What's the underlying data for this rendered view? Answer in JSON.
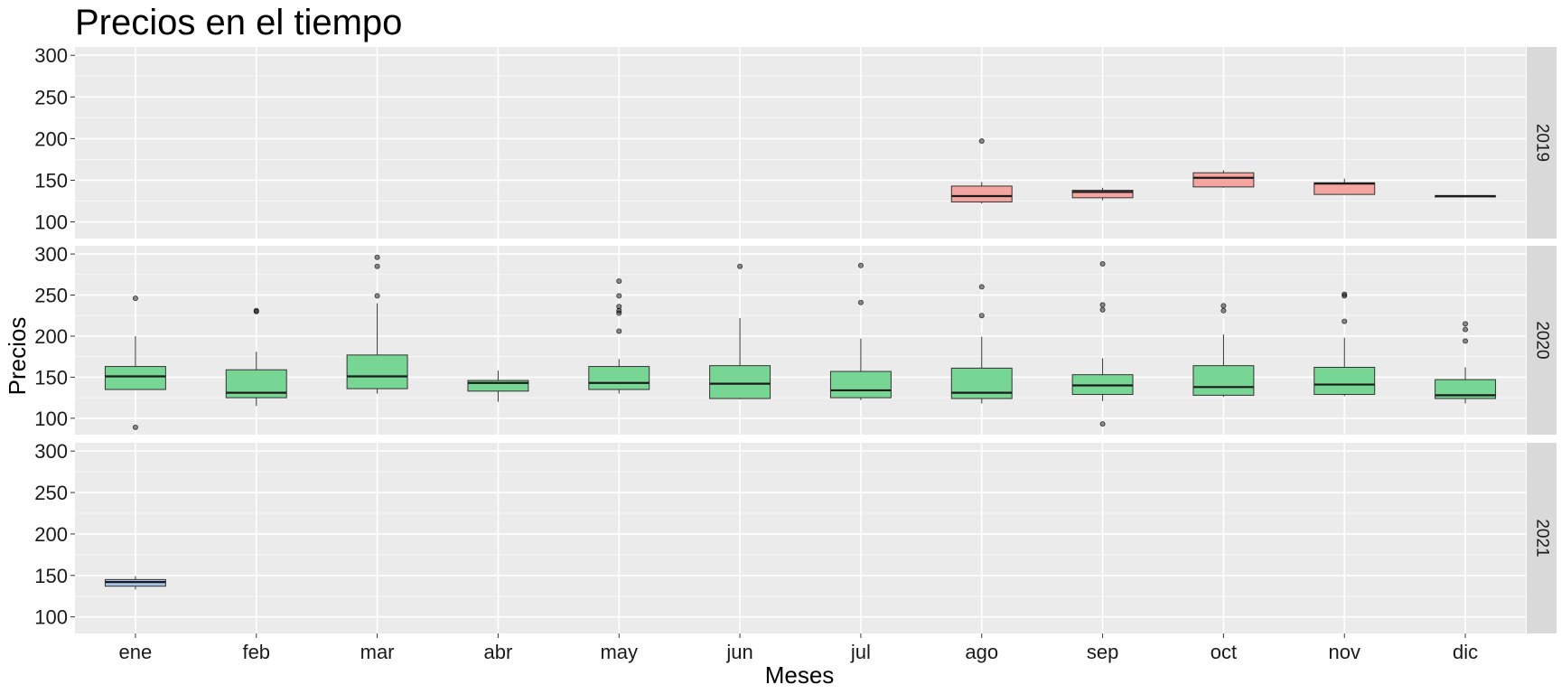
{
  "chart_data": {
    "type": "boxplot",
    "title": "Precios en el tiempo",
    "xlabel": "Meses",
    "ylabel": "Precios",
    "categories": [
      "ene",
      "feb",
      "mar",
      "abr",
      "may",
      "jun",
      "jul",
      "ago",
      "sep",
      "oct",
      "nov",
      "dic"
    ],
    "ylim": [
      80,
      310
    ],
    "yticks": [
      100,
      150,
      200,
      250,
      300
    ],
    "grid": true,
    "facets": [
      {
        "label": "2019",
        "color": "#F4A5A0",
        "boxes": [
          {
            "month": "ago",
            "min": 122,
            "q1": 124,
            "median": 131,
            "q3": 143,
            "max": 148,
            "outliers": [
              197
            ]
          },
          {
            "month": "sep",
            "min": 126,
            "q1": 129,
            "median": 136,
            "q3": 138,
            "max": 141,
            "outliers": []
          },
          {
            "month": "oct",
            "min": 141,
            "q1": 142,
            "median": 153,
            "q3": 159,
            "max": 162,
            "outliers": []
          },
          {
            "month": "nov",
            "min": 133,
            "q1": 133,
            "median": 146,
            "q3": 147,
            "max": 152,
            "outliers": []
          },
          {
            "month": "dic",
            "min": 130,
            "q1": 130,
            "median": 131,
            "q3": 131,
            "max": 131,
            "outliers": []
          }
        ]
      },
      {
        "label": "2020",
        "color": "#78D694",
        "boxes": [
          {
            "month": "ene",
            "min": 135,
            "q1": 135,
            "median": 151,
            "q3": 163,
            "max": 200,
            "outliers": [
              89,
              246
            ]
          },
          {
            "month": "feb",
            "min": 115,
            "q1": 125,
            "median": 131,
            "q3": 159,
            "max": 181,
            "outliers": [
              230,
              231
            ]
          },
          {
            "month": "mar",
            "min": 130,
            "q1": 136,
            "median": 151,
            "q3": 177,
            "max": 240,
            "outliers": [
              249,
              285,
              296
            ]
          },
          {
            "month": "abr",
            "min": 120,
            "q1": 133,
            "median": 143,
            "q3": 146,
            "max": 158,
            "outliers": []
          },
          {
            "month": "may",
            "min": 130,
            "q1": 135,
            "median": 143,
            "q3": 163,
            "max": 172,
            "outliers": [
              206,
              228,
              231,
              236,
              249,
              267
            ]
          },
          {
            "month": "jun",
            "min": 123,
            "q1": 124,
            "median": 142,
            "q3": 164,
            "max": 222,
            "outliers": [
              285
            ]
          },
          {
            "month": "jul",
            "min": 122,
            "q1": 125,
            "median": 134,
            "q3": 157,
            "max": 197,
            "outliers": [
              241,
              286
            ]
          },
          {
            "month": "ago",
            "min": 118,
            "q1": 124,
            "median": 131,
            "q3": 161,
            "max": 199,
            "outliers": [
              225,
              260
            ]
          },
          {
            "month": "sep",
            "min": 121,
            "q1": 129,
            "median": 140,
            "q3": 153,
            "max": 173,
            "outliers": [
              93,
              232,
              238,
              288
            ]
          },
          {
            "month": "oct",
            "min": 126,
            "q1": 128,
            "median": 138,
            "q3": 164,
            "max": 202,
            "outliers": [
              231,
              237
            ]
          },
          {
            "month": "nov",
            "min": 127,
            "q1": 129,
            "median": 141,
            "q3": 162,
            "max": 198,
            "outliers": [
              218,
              249,
              251
            ]
          },
          {
            "month": "dic",
            "min": 118,
            "q1": 124,
            "median": 128,
            "q3": 147,
            "max": 162,
            "outliers": [
              194,
              208,
              215
            ]
          }
        ]
      },
      {
        "label": "2021",
        "color": "#A9C4EB",
        "boxes": [
          {
            "month": "ene",
            "min": 133,
            "q1": 137,
            "median": 142,
            "q3": 145,
            "max": 149,
            "outliers": []
          }
        ]
      }
    ]
  }
}
